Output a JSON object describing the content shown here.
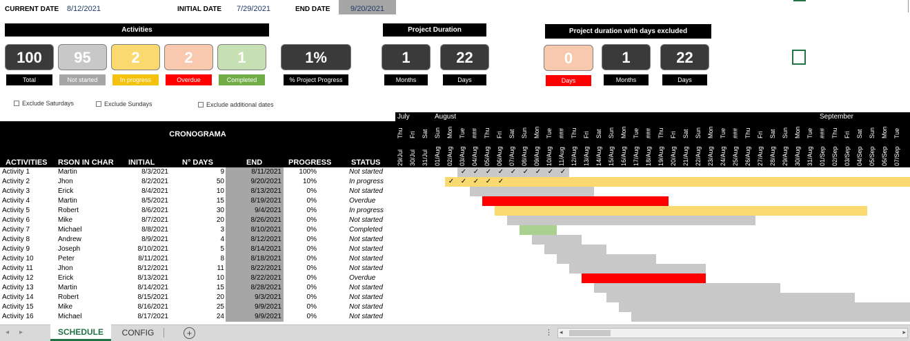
{
  "header": {
    "current_date_label": "CURRENT DATE",
    "current_date": "8/12/2021",
    "initial_date_label": "INITIAL DATE",
    "initial_date": "7/29/2021",
    "end_date_label": "END DATE",
    "end_date": "9/20/2021"
  },
  "activities_panel": {
    "title": "Activities",
    "kpis": [
      {
        "value": "100",
        "label": "Total",
        "bg": "#3a3a3a",
        "label_bg": "#000000",
        "fg": "#ffffff"
      },
      {
        "value": "95",
        "label": "Not started",
        "bg": "#c8c8c8",
        "label_bg": "#a6a6a6",
        "fg": "#ffffff"
      },
      {
        "value": "2",
        "label": "In progress",
        "bg": "#fbd971",
        "label_bg": "#f4c20d",
        "fg": "#ffffff"
      },
      {
        "value": "2",
        "label": "Overdue",
        "bg": "#f8c9ae",
        "label_bg": "#ff0000",
        "fg": "#ffffff"
      },
      {
        "value": "1",
        "label": "Completed",
        "bg": "#c6e0b4",
        "label_bg": "#70ad47",
        "fg": "#ffffff"
      }
    ],
    "progress": {
      "value": "1%",
      "label": "% Project Progress"
    }
  },
  "project_duration": {
    "title": "Project Duration",
    "months": "1",
    "months_label": "Months",
    "days": "22",
    "days_label": "Days"
  },
  "excluded_duration": {
    "title": "Project duration with days excluded",
    "days_ex": "0",
    "days_ex_label": "Days",
    "months": "1",
    "months_label": "Months",
    "days": "22",
    "days_label": "Days"
  },
  "checkboxes": {
    "sat": "Exclude Saturdays",
    "sun": "Exclude Sundays",
    "add": "Exclude additional dates"
  },
  "table": {
    "title": "CRONOGRAMA",
    "columns": [
      "ACTIVITIES",
      "RSON IN CHAR",
      "INITIAL",
      "N° DAYS",
      "END",
      "PROGRESS",
      "STATUS"
    ],
    "rows": [
      {
        "activity": "Activity 1",
        "person": "Martin",
        "initial": "8/3/2021",
        "days": "9",
        "end": "8/11/2021",
        "progress": "100%",
        "status": "Not started",
        "start_idx": 5,
        "len": 9,
        "color": "#c8c8c8",
        "ticks": 9
      },
      {
        "activity": "Activity 2",
        "person": "Jhon",
        "initial": "8/2/2021",
        "days": "50",
        "end": "9/20/2021",
        "progress": "10%",
        "status": "In progress",
        "start_idx": 4,
        "len": 50,
        "color": "#fbd971",
        "ticks": 5
      },
      {
        "activity": "Activity 3",
        "person": "Erick",
        "initial": "8/4/2021",
        "days": "10",
        "end": "8/13/2021",
        "progress": "0%",
        "status": "Not started",
        "start_idx": 6,
        "len": 10,
        "color": "#c8c8c8",
        "ticks": 0
      },
      {
        "activity": "Activity 4",
        "person": "Martin",
        "initial": "8/5/2021",
        "days": "15",
        "end": "8/19/2021",
        "progress": "0%",
        "status": "Overdue",
        "start_idx": 7,
        "len": 15,
        "color": "#ff0000",
        "ticks": 0
      },
      {
        "activity": "Activity 5",
        "person": "Robert",
        "initial": "8/6/2021",
        "days": "30",
        "end": "9/4/2021",
        "progress": "0%",
        "status": "In progress",
        "start_idx": 8,
        "len": 30,
        "color": "#fbd971",
        "ticks": 0
      },
      {
        "activity": "Activity 6",
        "person": "Mike",
        "initial": "8/7/2021",
        "days": "20",
        "end": "8/26/2021",
        "progress": "0%",
        "status": "Not started",
        "start_idx": 9,
        "len": 20,
        "color": "#c8c8c8",
        "ticks": 0
      },
      {
        "activity": "Activity 7",
        "person": "Michael",
        "initial": "8/8/2021",
        "days": "3",
        "end": "8/10/2021",
        "progress": "0%",
        "status": "Completed",
        "start_idx": 10,
        "len": 3,
        "color": "#a9d08e",
        "ticks": 0
      },
      {
        "activity": "Activity 8",
        "person": "Andrew",
        "initial": "8/9/2021",
        "days": "4",
        "end": "8/12/2021",
        "progress": "0%",
        "status": "Not started",
        "start_idx": 11,
        "len": 4,
        "color": "#c8c8c8",
        "ticks": 0
      },
      {
        "activity": "Activity 9",
        "person": "Joseph",
        "initial": "8/10/2021",
        "days": "5",
        "end": "8/14/2021",
        "progress": "0%",
        "status": "Not started",
        "start_idx": 12,
        "len": 5,
        "color": "#c8c8c8",
        "ticks": 0
      },
      {
        "activity": "Activity 10",
        "person": "Peter",
        "initial": "8/11/2021",
        "days": "8",
        "end": "8/18/2021",
        "progress": "0%",
        "status": "Not started",
        "start_idx": 13,
        "len": 8,
        "color": "#c8c8c8",
        "ticks": 0
      },
      {
        "activity": "Activity 11",
        "person": "Jhon",
        "initial": "8/12/2021",
        "days": "11",
        "end": "8/22/2021",
        "progress": "0%",
        "status": "Not started",
        "start_idx": 14,
        "len": 11,
        "color": "#c8c8c8",
        "ticks": 0
      },
      {
        "activity": "Activity 12",
        "person": "Erick",
        "initial": "8/13/2021",
        "days": "10",
        "end": "8/22/2021",
        "progress": "0%",
        "status": "Overdue",
        "start_idx": 15,
        "len": 10,
        "color": "#ff0000",
        "ticks": 0
      },
      {
        "activity": "Activity 13",
        "person": "Martin",
        "initial": "8/14/2021",
        "days": "15",
        "end": "8/28/2021",
        "progress": "0%",
        "status": "Not started",
        "start_idx": 16,
        "len": 15,
        "color": "#c8c8c8",
        "ticks": 0
      },
      {
        "activity": "Activity 14",
        "person": "Robert",
        "initial": "8/15/2021",
        "days": "20",
        "end": "9/3/2021",
        "progress": "0%",
        "status": "Not started",
        "start_idx": 17,
        "len": 20,
        "color": "#c8c8c8",
        "ticks": 0
      },
      {
        "activity": "Activity 15",
        "person": "Mike",
        "initial": "8/16/2021",
        "days": "25",
        "end": "9/9/2021",
        "progress": "0%",
        "status": "Not started",
        "start_idx": 18,
        "len": 25,
        "color": "#c8c8c8",
        "ticks": 0
      },
      {
        "activity": "Activity 16",
        "person": "Michael",
        "initial": "8/17/2021",
        "days": "24",
        "end": "9/9/2021",
        "progress": "0%",
        "status": "Not started",
        "start_idx": 19,
        "len": 24,
        "color": "#c8c8c8",
        "ticks": 0
      }
    ]
  },
  "gantt": {
    "months": [
      {
        "label": "July",
        "day_idx": 0
      },
      {
        "label": "August",
        "day_idx": 3
      },
      {
        "label": "September",
        "day_idx": 34
      }
    ],
    "days": [
      {
        "dow": "Thu",
        "date": "29/Jul"
      },
      {
        "dow": "Fri",
        "date": "30/Jul"
      },
      {
        "dow": "Sat",
        "date": "31/Jul"
      },
      {
        "dow": "Sun",
        "date": "01/Aug"
      },
      {
        "dow": "Mon",
        "date": "02/Aug"
      },
      {
        "dow": "Tue",
        "date": "03/Aug"
      },
      {
        "dow": "###",
        "date": "04/Aug"
      },
      {
        "dow": "Thu",
        "date": "05/Aug"
      },
      {
        "dow": "Fri",
        "date": "06/Aug"
      },
      {
        "dow": "Sat",
        "date": "07/Aug"
      },
      {
        "dow": "Sun",
        "date": "08/Aug"
      },
      {
        "dow": "Mon",
        "date": "09/Aug"
      },
      {
        "dow": "Tue",
        "date": "10/Aug"
      },
      {
        "dow": "###",
        "date": "11/Aug"
      },
      {
        "dow": "Thu",
        "date": "12/Aug"
      },
      {
        "dow": "Fri",
        "date": "13/Aug"
      },
      {
        "dow": "Sat",
        "date": "14/Aug"
      },
      {
        "dow": "Sun",
        "date": "15/Aug"
      },
      {
        "dow": "Mon",
        "date": "16/Aug"
      },
      {
        "dow": "Tue",
        "date": "17/Aug"
      },
      {
        "dow": "###",
        "date": "18/Aug"
      },
      {
        "dow": "Thu",
        "date": "19/Aug"
      },
      {
        "dow": "Fri",
        "date": "20/Aug"
      },
      {
        "dow": "Sat",
        "date": "21/Aug"
      },
      {
        "dow": "Sun",
        "date": "22/Aug"
      },
      {
        "dow": "Mon",
        "date": "23/Aug"
      },
      {
        "dow": "Tue",
        "date": "24/Aug"
      },
      {
        "dow": "###",
        "date": "25/Aug"
      },
      {
        "dow": "Thu",
        "date": "26/Aug"
      },
      {
        "dow": "Fri",
        "date": "27/Aug"
      },
      {
        "dow": "Sat",
        "date": "28/Aug"
      },
      {
        "dow": "Sun",
        "date": "29/Aug"
      },
      {
        "dow": "Mon",
        "date": "30/Aug"
      },
      {
        "dow": "Tue",
        "date": "31/Aug"
      },
      {
        "dow": "###",
        "date": "01/Sep"
      },
      {
        "dow": "Thu",
        "date": "02/Sep"
      },
      {
        "dow": "Fri",
        "date": "03/Sep"
      },
      {
        "dow": "Sat",
        "date": "04/Sep"
      },
      {
        "dow": "Sun",
        "date": "05/Sep"
      },
      {
        "dow": "Mon",
        "date": "06/Sep"
      },
      {
        "dow": "Tue",
        "date": "07/Sep"
      }
    ],
    "tick_glyph": "✓"
  },
  "tabs": {
    "schedule": "SCHEDULE",
    "config": "CONFIG"
  }
}
